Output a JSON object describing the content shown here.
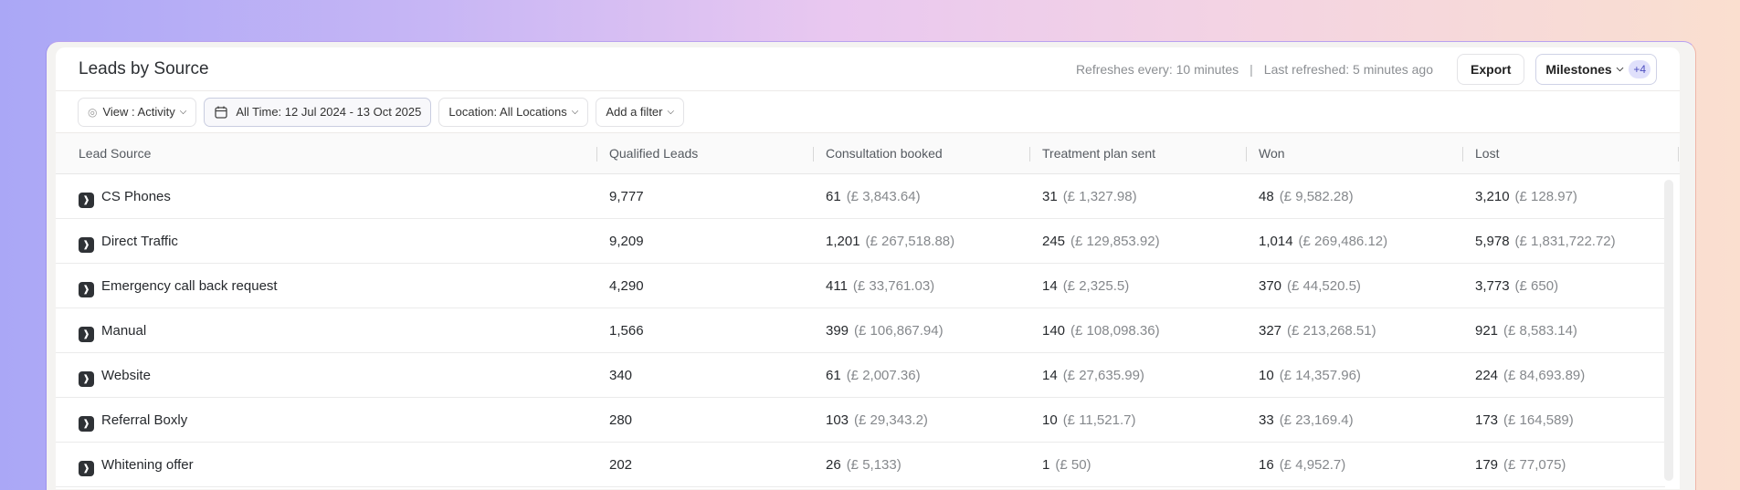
{
  "header": {
    "title": "Leads by Source",
    "refresh_interval": "Refreshes every: 10 minutes",
    "separator": "|",
    "last_refreshed": "Last refreshed: 5 minutes ago",
    "export_label": "Export",
    "milestones_label": "Milestones",
    "milestones_badge": "+4"
  },
  "filters": {
    "view": "View : Activity",
    "date": "All Time: 12 Jul 2024 - 13 Oct 2025",
    "location": "Location: All Locations",
    "add_filter": "Add a filter"
  },
  "table": {
    "columns": [
      "Lead Source",
      "Qualified Leads",
      "Consultation booked",
      "Treatment plan sent",
      "Won",
      "Lost"
    ],
    "rows": [
      {
        "source": "CS Phones",
        "qualified": "9,777",
        "consult": [
          "61",
          "(£ 3,843.64)"
        ],
        "treatment": [
          "31",
          "(£ 1,327.98)"
        ],
        "won": [
          "48",
          "(£ 9,582.28)"
        ],
        "lost": [
          "3,210",
          "(£ 128.97)"
        ]
      },
      {
        "source": "Direct Traffic",
        "qualified": "9,209",
        "consult": [
          "1,201",
          "(£ 267,518.88)"
        ],
        "treatment": [
          "245",
          "(£ 129,853.92)"
        ],
        "won": [
          "1,014",
          "(£ 269,486.12)"
        ],
        "lost": [
          "5,978",
          "(£ 1,831,722.72)"
        ]
      },
      {
        "source": "Emergency call back request",
        "qualified": "4,290",
        "consult": [
          "411",
          "(£ 33,761.03)"
        ],
        "treatment": [
          "14",
          "(£ 2,325.5)"
        ],
        "won": [
          "370",
          "(£ 44,520.5)"
        ],
        "lost": [
          "3,773",
          "(£ 650)"
        ]
      },
      {
        "source": "Manual",
        "qualified": "1,566",
        "consult": [
          "399",
          "(£ 106,867.94)"
        ],
        "treatment": [
          "140",
          "(£ 108,098.36)"
        ],
        "won": [
          "327",
          "(£ 213,268.51)"
        ],
        "lost": [
          "921",
          "(£ 8,583.14)"
        ]
      },
      {
        "source": "Website",
        "qualified": "340",
        "consult": [
          "61",
          "(£ 2,007.36)"
        ],
        "treatment": [
          "14",
          "(£ 27,635.99)"
        ],
        "won": [
          "10",
          "(£ 14,357.96)"
        ],
        "lost": [
          "224",
          "(£ 84,693.89)"
        ]
      },
      {
        "source": "Referral Boxly",
        "qualified": "280",
        "consult": [
          "103",
          "(£ 29,343.2)"
        ],
        "treatment": [
          "10",
          "(£ 11,521.7)"
        ],
        "won": [
          "33",
          "(£ 23,169.4)"
        ],
        "lost": [
          "173",
          "(£ 164,589)"
        ]
      },
      {
        "source": "Whitening offer",
        "qualified": "202",
        "consult": [
          "26",
          "(£ 5,133)"
        ],
        "treatment": [
          "1",
          "(£ 50)"
        ],
        "won": [
          "16",
          "(£ 4,952.7)"
        ],
        "lost": [
          "179",
          "(£ 77,075)"
        ]
      }
    ]
  },
  "icons": {
    "view": "eye-icon",
    "date": "calendar-icon",
    "chevron": "chevron-down-icon",
    "source": "source-icon"
  }
}
